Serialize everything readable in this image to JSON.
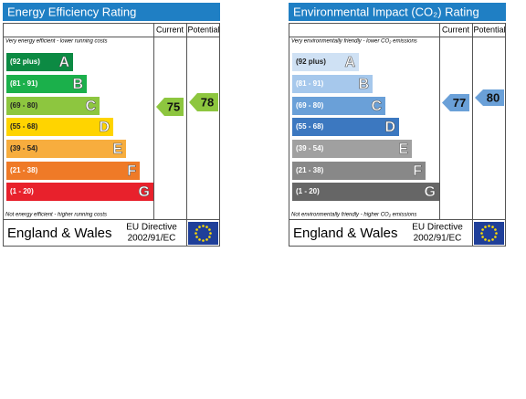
{
  "energy": {
    "title": "Energy Efficiency Rating",
    "col_current": "Current",
    "col_potential": "Potential",
    "top_note": "Very energy efficient - lower running costs",
    "bottom_note": "Not energy efficient - higher running costs",
    "bands": [
      {
        "range": "(92 plus)",
        "letter": "A"
      },
      {
        "range": "(81 - 91)",
        "letter": "B"
      },
      {
        "range": "(69 - 80)",
        "letter": "C"
      },
      {
        "range": "(55 - 68)",
        "letter": "D"
      },
      {
        "range": "(39 - 54)",
        "letter": "E"
      },
      {
        "range": "(21 - 38)",
        "letter": "F"
      },
      {
        "range": "(1 - 20)",
        "letter": "G"
      }
    ],
    "current": 75,
    "potential": 78,
    "region": "England & Wales",
    "directive": [
      "EU Directive",
      "2002/91/EC"
    ]
  },
  "environmental": {
    "title": "Environmental Impact (CO₂) Rating",
    "col_current": "Current",
    "col_potential": "Potential",
    "top_note": "Very environmentally friendly - lower CO₂ emissions",
    "bottom_note": "Not environmentally friendly - higher CO₂ emissions",
    "bands": [
      {
        "range": "(92 plus)",
        "letter": "A"
      },
      {
        "range": "(81 - 91)",
        "letter": "B"
      },
      {
        "range": "(69 - 80)",
        "letter": "C"
      },
      {
        "range": "(55 - 68)",
        "letter": "D"
      },
      {
        "range": "(39 - 54)",
        "letter": "E"
      },
      {
        "range": "(21 - 38)",
        "letter": "F"
      },
      {
        "range": "(1 - 20)",
        "letter": "G"
      }
    ],
    "current": 77,
    "potential": 80,
    "region": "England & Wales",
    "directive": [
      "EU Directive",
      "2002/91/EC"
    ]
  }
}
